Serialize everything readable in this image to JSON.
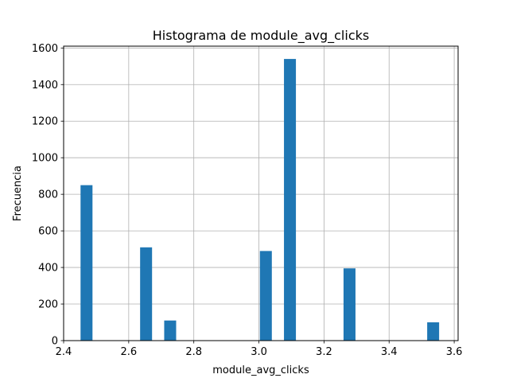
{
  "chart_data": {
    "type": "bar",
    "title": "Histograma de module_avg_clicks",
    "xlabel": "module_avg_clicks",
    "ylabel": "Frecuencia",
    "xlim": [
      2.4,
      3.612
    ],
    "ylim": [
      0,
      1610
    ],
    "xticks": [
      "2.4",
      "2.6",
      "2.8",
      "3.0",
      "3.2",
      "3.4",
      "3.6"
    ],
    "yticks": [
      "0",
      "200",
      "400",
      "600",
      "800",
      "1000",
      "1200",
      "1400",
      "1600"
    ],
    "grid": true,
    "bar_color": "#1f77b4",
    "bin_width": 0.0367,
    "bins": [
      {
        "x0": 2.452,
        "value": 850
      },
      {
        "x0": 2.635,
        "value": 510
      },
      {
        "x0": 2.709,
        "value": 110
      },
      {
        "x0": 3.003,
        "value": 490
      },
      {
        "x0": 3.077,
        "value": 1540
      },
      {
        "x0": 3.26,
        "value": 395
      },
      {
        "x0": 3.517,
        "value": 100
      }
    ]
  }
}
